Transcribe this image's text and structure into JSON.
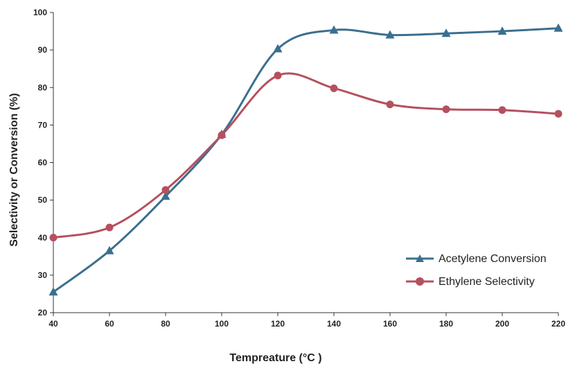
{
  "chart_data": {
    "type": "line",
    "title": "",
    "xlabel": "Tempreature (°C )",
    "ylabel": "Selectivity or Conversion (%)",
    "x": [
      40,
      60,
      80,
      100,
      120,
      140,
      160,
      180,
      200,
      220
    ],
    "xlim": [
      40,
      220
    ],
    "ylim": [
      20,
      100
    ],
    "x_ticks": [
      "40",
      "60",
      "80",
      "100",
      "120",
      "140",
      "160",
      "180",
      "200",
      "220"
    ],
    "y_ticks": [
      "20",
      "30",
      "40",
      "50",
      "60",
      "70",
      "80",
      "90",
      "100"
    ],
    "grid": false,
    "legend_position": "bottom-right",
    "series": [
      {
        "name": "Acetylene Conversion",
        "color": "#3b6f8f",
        "marker": "triangle",
        "values": [
          25.5,
          36.5,
          51,
          67.5,
          90.3,
          95.3,
          94,
          94.4,
          95,
          95.8
        ]
      },
      {
        "name": "Ethylene Selectivity",
        "color": "#b5505e",
        "marker": "circle",
        "values": [
          40,
          42.7,
          52.7,
          67.3,
          83.2,
          79.8,
          75.5,
          74.2,
          74,
          73
        ]
      }
    ]
  }
}
